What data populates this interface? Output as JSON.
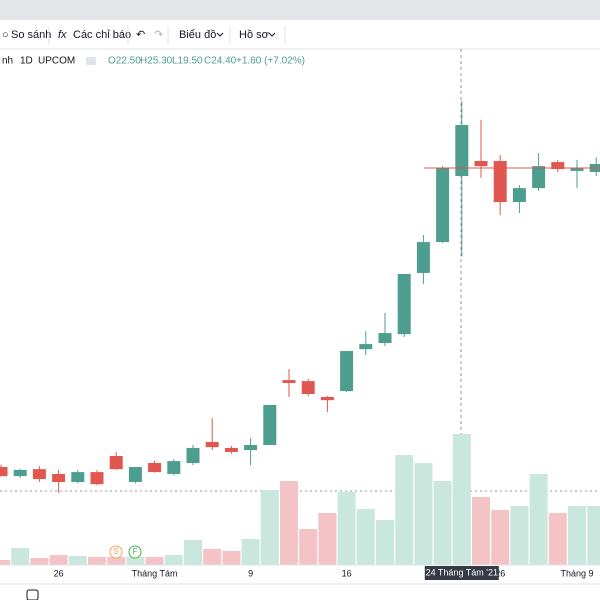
{
  "toolbar": {
    "compare": "So sánh",
    "indicators": "Các chỉ báo",
    "chart_menu": "Biểu đồ",
    "profile_menu": "Hồ sơ"
  },
  "legend": {
    "symbol": "nh",
    "interval": "1D",
    "exchange": "UPCOM",
    "open": "O22.50",
    "high": "H25.30",
    "low": "L19.50",
    "close": "C24.40",
    "change": "+1.60 (+7.02%)"
  },
  "events": [
    "S",
    "F"
  ],
  "chart_data": {
    "type": "candlestick",
    "categories": [
      null,
      null,
      null,
      "26",
      null,
      null,
      null,
      null,
      "Tháng Tám",
      null,
      null,
      null,
      null,
      "9",
      null,
      null,
      null,
      null,
      "16",
      null,
      null,
      null,
      null,
      null,
      null,
      null,
      "26",
      null,
      null,
      null,
      "Tháng 9",
      null
    ],
    "crosshair_label": "24 Tháng Tám '21",
    "up_color": "#4e9e8f",
    "down_color": "#e0574f",
    "volume_up_color": "#c9e7dc",
    "volume_down_color": "#f3c3c5",
    "open": [
      11.66,
      11.32,
      11.58,
      11.4,
      11.1,
      11.47,
      12.07,
      11.1,
      11.81,
      11.4,
      11.81,
      12.59,
      12.37,
      12.29,
      12.48,
      14.9,
      14.86,
      14.27,
      14.49,
      16.05,
      16.28,
      16.61,
      18.89,
      20.04,
      22.5,
      23.06,
      23.06,
      21.53,
      22.05,
      23.02,
      22.69,
      22.65
    ],
    "high": [
      11.75,
      11.6,
      11.69,
      11.55,
      11.55,
      11.55,
      12.22,
      11.66,
      11.9,
      11.95,
      12.48,
      13.48,
      12.45,
      12.74,
      13.97,
      15.31,
      14.95,
      14.3,
      15.98,
      16.72,
      17.4,
      18.85,
      20.3,
      22.87,
      25.3,
      24.59,
      23.28,
      22.16,
      23.36,
      23.1,
      23.1,
      23.2
    ],
    "low": [
      11.3,
      11.25,
      11.1,
      10.69,
      11.05,
      10.98,
      11.55,
      11.05,
      11.45,
      11.35,
      11.73,
      12.29,
      12.15,
      11.73,
      12.48,
      14.27,
      14.3,
      13.71,
      14.45,
      15.83,
      16.17,
      16.5,
      18.48,
      20.0,
      19.5,
      22.43,
      21.05,
      21.12,
      21.94,
      22.65,
      22.05,
      22.5
    ],
    "close": [
      11.32,
      11.55,
      11.21,
      11.1,
      11.47,
      11.02,
      11.58,
      11.66,
      11.47,
      11.88,
      12.37,
      12.4,
      12.22,
      12.48,
      13.97,
      14.79,
      14.38,
      14.15,
      15.98,
      16.24,
      16.65,
      18.85,
      20.04,
      22.8,
      24.4,
      22.87,
      21.53,
      22.05,
      22.87,
      22.76,
      22.8,
      22.95
    ],
    "volume": [
      5,
      17,
      7,
      10,
      9,
      8,
      8,
      8,
      8,
      10,
      25,
      16,
      14,
      26,
      75,
      84,
      36,
      52,
      73,
      56,
      45,
      110,
      102,
      84,
      131,
      68,
      55,
      59,
      91,
      52,
      59,
      59
    ],
    "ylim": [
      7.45,
      27.27
    ],
    "vlim": [
      0,
      160
    ],
    "price_line": 22.8,
    "price_line_color": "#e0574f"
  }
}
